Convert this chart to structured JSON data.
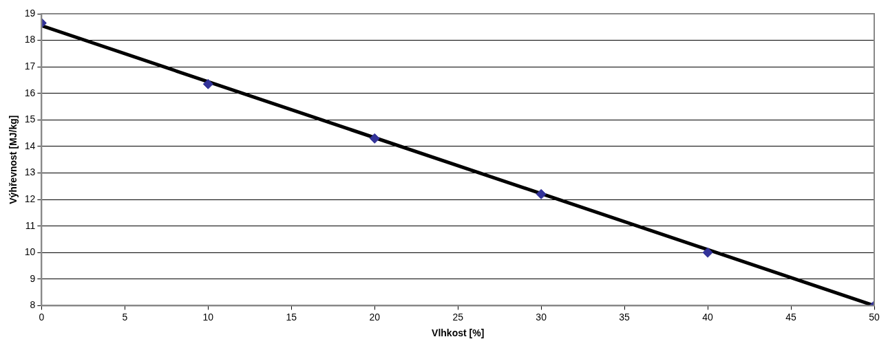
{
  "chart_data": {
    "type": "scatter",
    "xlabel": "Vlhkost [%]",
    "ylabel": "Výhřevnost [MJ/kg]",
    "xlim": [
      0,
      50
    ],
    "xticks": [
      0,
      5,
      10,
      15,
      20,
      25,
      30,
      35,
      40,
      45,
      50
    ],
    "ylim": [
      8,
      19
    ],
    "yticks": [
      8,
      9,
      10,
      11,
      12,
      13,
      14,
      15,
      16,
      17,
      18,
      19
    ],
    "grid": "y",
    "legend": false,
    "series": [
      {
        "type": "line",
        "color": "#000000",
        "x": [
          0,
          50
        ],
        "values": [
          18.55,
          8.0
        ],
        "marker": "none",
        "line_style": "solid"
      },
      {
        "type": "scatter",
        "color": "#333399",
        "x": [
          0,
          10,
          20,
          30,
          40,
          50
        ],
        "values": [
          18.65,
          16.35,
          14.3,
          12.2,
          10.0,
          8.0
        ],
        "marker": "diamond"
      }
    ]
  }
}
